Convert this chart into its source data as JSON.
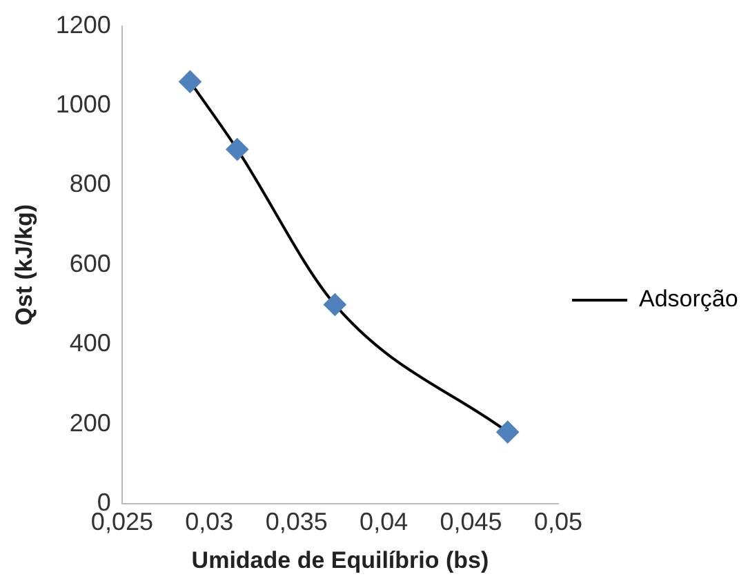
{
  "chart_data": {
    "type": "line",
    "xlabel": "Umidade de Equilíbrio (bs)",
    "ylabel": "Qst (kJ/kg)",
    "x": [
      0.0289,
      0.0316,
      0.0372,
      0.0471
    ],
    "series": [
      {
        "name": "Adsorção",
        "color": "#4f81bd",
        "values": [
          1060,
          890,
          500,
          180
        ]
      }
    ],
    "xlim": [
      0.025,
      0.05
    ],
    "xticks": [
      {
        "value": 0.025,
        "label": "0,025"
      },
      {
        "value": 0.03,
        "label": "0,03"
      },
      {
        "value": 0.035,
        "label": "0,035"
      },
      {
        "value": 0.04,
        "label": "0,04"
      },
      {
        "value": 0.045,
        "label": "0,045"
      },
      {
        "value": 0.05,
        "label": "0,05"
      }
    ],
    "ylim": [
      0,
      1200
    ],
    "yticks": [
      0,
      200,
      400,
      600,
      800,
      1000,
      1200
    ],
    "grid": false,
    "legend": "right",
    "marker": "diamond",
    "line_style": "solid"
  }
}
